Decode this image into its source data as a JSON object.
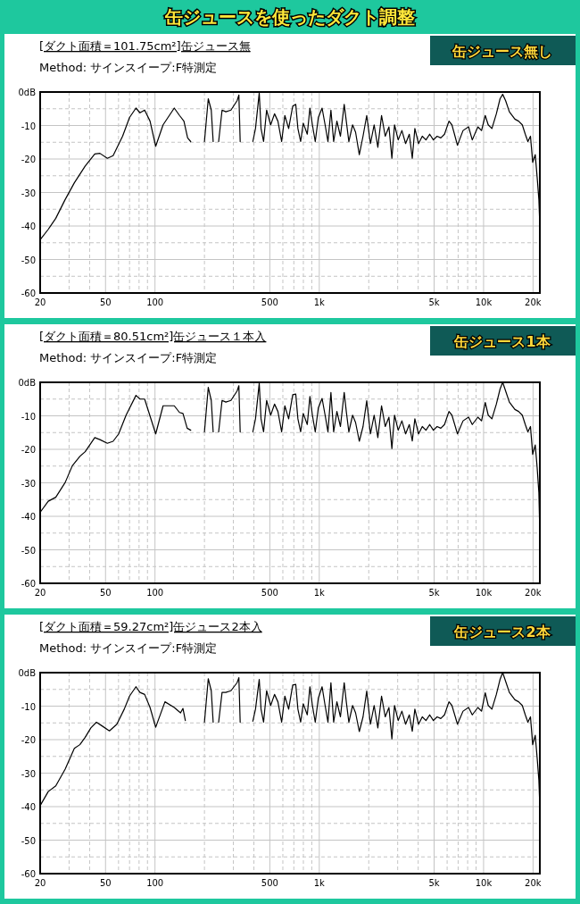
{
  "chart_data": [
    {
      "type": "line",
      "title": "[ダクト面積＝101.75cm²]缶ジュース無",
      "subtitle": "Method:  サインスイープ:F特測定",
      "annotations": [
        "缶ジュースを使ったダクト調整",
        "缶ジュース無し"
      ],
      "log": "x",
      "grid": true,
      "xlim": [
        20,
        22000
      ],
      "ylim": [
        -60,
        0
      ],
      "xticks": [
        20,
        {
          "value": 30,
          "label": null
        },
        {
          "value": 40,
          "label": null
        },
        50,
        {
          "value": 60,
          "label": null
        },
        {
          "value": 70,
          "label": null
        },
        {
          "value": 80,
          "label": null
        },
        {
          "value": 90,
          "label": null
        },
        100,
        {
          "value": 200,
          "label": null
        },
        {
          "value": 300,
          "label": null
        },
        {
          "value": 400,
          "label": null
        },
        500,
        {
          "value": 600,
          "label": null
        },
        {
          "value": 700,
          "label": null
        },
        {
          "value": 800,
          "label": null
        },
        {
          "value": 900,
          "label": null
        },
        {
          "value": 1000,
          "label": "1k"
        },
        {
          "value": 2000,
          "label": null
        },
        {
          "value": 3000,
          "label": null
        },
        {
          "value": 4000,
          "label": null
        },
        {
          "value": 5000,
          "label": "5k"
        },
        {
          "value": 6000,
          "label": null
        },
        {
          "value": 7000,
          "label": null
        },
        {
          "value": 8000,
          "label": null
        },
        {
          "value": 9000,
          "label": null
        },
        {
          "value": 10000,
          "label": "10k"
        },
        {
          "value": 20000,
          "label": "20k"
        }
      ],
      "yticks": [
        {
          "value": -60,
          "label": "-60"
        },
        {
          "value": -55,
          "label": null
        },
        {
          "value": -50,
          "label": "-50"
        },
        {
          "value": -45,
          "label": null
        },
        {
          "value": -40,
          "label": "-40"
        },
        {
          "value": -35,
          "label": null
        },
        {
          "value": -30,
          "label": "-30"
        },
        {
          "value": -25,
          "label": null
        },
        {
          "value": -20,
          "label": "-20"
        },
        {
          "value": -15,
          "label": null
        },
        {
          "value": -10,
          "label": "-10"
        },
        {
          "value": -5,
          "label": null
        },
        {
          "value": 0,
          "label": "0dB"
        }
      ],
      "series": [
        {
          "color": "#000000",
          "x": [
            20,
            22.4,
            24.9,
            28.4,
            32.3,
            37.6,
            43,
            46.2,
            51.3,
            55.6,
            63.5,
            70,
            76.6,
            81,
            86.5,
            93.3,
            101,
            112,
            131,
            141,
            150,
            158,
            165,
            180,
            200,
            211,
            220,
            226,
            235,
            244,
            256,
            270,
            290,
            316,
            324,
            330,
            360,
            394,
            409,
            431,
            442,
            458,
            478,
            506,
            534,
            560,
            590,
            617,
            651,
            689,
            719,
            741,
            770,
            799,
            845,
            877,
            908,
            945,
            987,
            1040,
            1085,
            1129,
            1177,
            1223,
            1280,
            1345,
            1418,
            1460,
            1513,
            1595,
            1663,
            1752,
            1846,
            1944,
            2048,
            2157,
            2272,
            2393,
            2520,
            2654,
            2766,
            2870,
            3022,
            3183,
            3353,
            3531,
            3681,
            3817,
            4020,
            4235,
            4460,
            4697,
            4948,
            5212,
            5490,
            5782,
            6155,
            6416,
            6934,
            7497,
            8102,
            8535,
            9228,
            9719,
            10236,
            10670,
            11238,
            11960,
            12600,
            13070,
            13620,
            14350,
            15510,
            16340,
            17200,
            17940,
            18600,
            19290,
            19900,
            20630,
            21180,
            21700,
            21950
          ],
          "values": [
            -44.1,
            -41.0,
            -37.7,
            -32.1,
            -27.1,
            -22.1,
            -18.5,
            -18.3,
            -19.8,
            -19.0,
            -13.2,
            -7.6,
            -4.8,
            -6.2,
            -5.4,
            -8.7,
            -16.2,
            -9.8,
            -4.8,
            -7.0,
            -8.7,
            -13.7,
            -14.8,
            null,
            -14.8,
            -2.0,
            -5.4,
            -14.8,
            null,
            -14.8,
            -5.4,
            -5.9,
            -5.4,
            -2.6,
            -0.9,
            -14.8,
            null,
            -14.8,
            -10.9,
            -0.3,
            -10.9,
            -14.8,
            -5.4,
            -9.8,
            -6.5,
            -8.7,
            -14.8,
            -7.0,
            -10.9,
            -4.2,
            -3.7,
            -10.9,
            -14.8,
            -9.3,
            -12.6,
            -4.8,
            -9.8,
            -14.8,
            -7.6,
            -4.8,
            -9.8,
            -14.8,
            -5.4,
            -14.8,
            -8.7,
            -13.2,
            -3.7,
            -8.7,
            -14.8,
            -9.8,
            -12.0,
            -18.7,
            -13.2,
            -7.0,
            -15.4,
            -9.8,
            -16.5,
            -7.0,
            -13.2,
            -10.4,
            -19.8,
            -9.8,
            -14.3,
            -11.5,
            -15.4,
            -12.6,
            -19.8,
            -10.9,
            -15.4,
            -13.2,
            -14.3,
            -12.6,
            -14.3,
            -13.2,
            -13.7,
            -12.6,
            -8.7,
            -9.8,
            -15.9,
            -11.5,
            -10.4,
            -14.3,
            -10.4,
            -11.5,
            -7.0,
            -9.8,
            -10.9,
            -6.5,
            -2.0,
            -0.7,
            -2.6,
            -5.9,
            -8.1,
            -8.7,
            -9.8,
            -12.6,
            -14.8,
            -13.2,
            -21.0,
            -18.7,
            -25.4,
            -32.1,
            -38.8
          ]
        }
      ]
    },
    {
      "type": "line",
      "title": "[ダクト面積＝80.51cm²]缶ジュース１本入",
      "subtitle": "Method:  サインスイープ:F特測定",
      "annotations": [
        "缶ジュース1本"
      ],
      "log": "x",
      "grid": true,
      "xlim": [
        20,
        22000
      ],
      "ylim": [
        -60,
        0
      ],
      "xticks": [
        20,
        {
          "value": 30,
          "label": null
        },
        {
          "value": 40,
          "label": null
        },
        50,
        {
          "value": 60,
          "label": null
        },
        {
          "value": 70,
          "label": null
        },
        {
          "value": 80,
          "label": null
        },
        {
          "value": 90,
          "label": null
        },
        100,
        {
          "value": 200,
          "label": null
        },
        {
          "value": 300,
          "label": null
        },
        {
          "value": 400,
          "label": null
        },
        500,
        {
          "value": 600,
          "label": null
        },
        {
          "value": 700,
          "label": null
        },
        {
          "value": 800,
          "label": null
        },
        {
          "value": 900,
          "label": null
        },
        {
          "value": 1000,
          "label": "1k"
        },
        {
          "value": 2000,
          "label": null
        },
        {
          "value": 3000,
          "label": null
        },
        {
          "value": 4000,
          "label": null
        },
        {
          "value": 5000,
          "label": "5k"
        },
        {
          "value": 6000,
          "label": null
        },
        {
          "value": 7000,
          "label": null
        },
        {
          "value": 8000,
          "label": null
        },
        {
          "value": 9000,
          "label": null
        },
        {
          "value": 10000,
          "label": "10k"
        },
        {
          "value": 20000,
          "label": "20k"
        }
      ],
      "yticks": [
        {
          "value": -60,
          "label": "-60"
        },
        {
          "value": -55,
          "label": null
        },
        {
          "value": -50,
          "label": "-50"
        },
        {
          "value": -45,
          "label": null
        },
        {
          "value": -40,
          "label": "-40"
        },
        {
          "value": -35,
          "label": null
        },
        {
          "value": -30,
          "label": "-30"
        },
        {
          "value": -25,
          "label": null
        },
        {
          "value": -20,
          "label": "-20"
        },
        {
          "value": -15,
          "label": null
        },
        {
          "value": -10,
          "label": "-10"
        },
        {
          "value": -5,
          "label": null
        },
        {
          "value": 0,
          "label": "0dB"
        }
      ],
      "series": [
        {
          "color": "#000000",
          "x": [
            20,
            22.4,
            24.9,
            28.4,
            31.4,
            34.9,
            37.6,
            43,
            46.2,
            51.3,
            55.6,
            60.1,
            66.7,
            76.6,
            81,
            86.5,
            101,
            112,
            131,
            141,
            148,
            157,
            165,
            180,
            200,
            211,
            220,
            226,
            235,
            244,
            256,
            270,
            290,
            316,
            324,
            330,
            360,
            394,
            409,
            431,
            442,
            458,
            478,
            506,
            534,
            560,
            590,
            617,
            651,
            689,
            719,
            741,
            770,
            799,
            845,
            877,
            908,
            945,
            987,
            1040,
            1085,
            1129,
            1177,
            1223,
            1280,
            1345,
            1418,
            1460,
            1513,
            1595,
            1663,
            1752,
            1846,
            1944,
            2048,
            2157,
            2272,
            2393,
            2520,
            2654,
            2766,
            2870,
            3022,
            3183,
            3353,
            3531,
            3681,
            3817,
            4020,
            4235,
            4460,
            4697,
            4948,
            5212,
            5490,
            5782,
            6155,
            6416,
            6934,
            7497,
            8102,
            8535,
            9228,
            9719,
            10236,
            10670,
            11238,
            11960,
            12600,
            13070,
            13620,
            14350,
            15510,
            16340,
            17200,
            17940,
            18600,
            19290,
            19900,
            20630,
            21180,
            21700,
            21950
          ],
          "values": [
            -38.8,
            -35.5,
            -34.3,
            -29.9,
            -24.9,
            -22.1,
            -20.7,
            -16.5,
            -17.1,
            -18.2,
            -17.6,
            -15.4,
            -9.8,
            -3.9,
            -5.0,
            -5.0,
            -15.4,
            -7.0,
            -7.0,
            -9.0,
            -9.3,
            -13.7,
            -14.3,
            null,
            -14.8,
            -1.5,
            -5.4,
            -14.8,
            null,
            -14.8,
            -5.4,
            -5.9,
            -5.4,
            -2.6,
            -1.0,
            -14.8,
            null,
            -14.8,
            -10.9,
            -0.3,
            -10.9,
            -14.8,
            -5.4,
            -9.8,
            -6.5,
            -8.7,
            -14.8,
            -7.0,
            -10.9,
            -3.7,
            -3.5,
            -10.9,
            -14.8,
            -9.3,
            -12.6,
            -4.2,
            -9.8,
            -14.8,
            -7.6,
            -4.8,
            -9.8,
            -14.8,
            -3.0,
            -14.8,
            -8.7,
            -13.2,
            -3.0,
            -8.7,
            -14.8,
            -9.8,
            -12.0,
            -17.6,
            -13.2,
            -5.5,
            -15.4,
            -9.8,
            -16.5,
            -7.0,
            -13.2,
            -10.4,
            -19.8,
            -9.8,
            -14.3,
            -11.5,
            -15.4,
            -12.6,
            -17.5,
            -10.9,
            -15.4,
            -13.2,
            -14.3,
            -12.6,
            -14.3,
            -13.2,
            -13.7,
            -12.6,
            -8.7,
            -9.8,
            -15.4,
            -11.5,
            -10.4,
            -12.6,
            -10.4,
            -11.5,
            -6.0,
            -9.8,
            -10.9,
            -6.5,
            -2.0,
            0.0,
            -2.6,
            -5.9,
            -8.1,
            -8.7,
            -9.8,
            -12.6,
            -14.8,
            -13.2,
            -21.5,
            -18.7,
            -25.4,
            -33.0,
            -43.3
          ]
        }
      ]
    },
    {
      "type": "line",
      "title": "[ダクト面積＝59.27cm²]缶ジュース2本入",
      "subtitle": "Method:  サインスイープ:F特測定",
      "annotations": [
        "缶ジュース2本"
      ],
      "log": "x",
      "grid": true,
      "xlim": [
        20,
        22000
      ],
      "ylim": [
        -60,
        0
      ],
      "xticks": [
        20,
        {
          "value": 30,
          "label": null
        },
        {
          "value": 40,
          "label": null
        },
        50,
        {
          "value": 60,
          "label": null
        },
        {
          "value": 70,
          "label": null
        },
        {
          "value": 80,
          "label": null
        },
        {
          "value": 90,
          "label": null
        },
        100,
        {
          "value": 200,
          "label": null
        },
        {
          "value": 300,
          "label": null
        },
        {
          "value": 400,
          "label": null
        },
        500,
        {
          "value": 600,
          "label": null
        },
        {
          "value": 700,
          "label": null
        },
        {
          "value": 800,
          "label": null
        },
        {
          "value": 900,
          "label": null
        },
        {
          "value": 1000,
          "label": "1k"
        },
        {
          "value": 2000,
          "label": null
        },
        {
          "value": 3000,
          "label": null
        },
        {
          "value": 4000,
          "label": null
        },
        {
          "value": 5000,
          "label": "5k"
        },
        {
          "value": 6000,
          "label": null
        },
        {
          "value": 7000,
          "label": null
        },
        {
          "value": 8000,
          "label": null
        },
        {
          "value": 9000,
          "label": null
        },
        {
          "value": 10000,
          "label": "10k"
        },
        {
          "value": 20000,
          "label": "20k"
        }
      ],
      "yticks": [
        {
          "value": -60,
          "label": "-60"
        },
        {
          "value": -55,
          "label": null
        },
        {
          "value": -50,
          "label": "-50"
        },
        {
          "value": -45,
          "label": null
        },
        {
          "value": -40,
          "label": "-40"
        },
        {
          "value": -35,
          "label": null
        },
        {
          "value": -30,
          "label": "-30"
        },
        {
          "value": -25,
          "label": null
        },
        {
          "value": -20,
          "label": "-20"
        },
        {
          "value": -15,
          "label": null
        },
        {
          "value": -10,
          "label": "-10"
        },
        {
          "value": -5,
          "label": null
        },
        {
          "value": 0,
          "label": "0dB"
        }
      ],
      "series": [
        {
          "color": "#000000",
          "x": [
            20,
            22.4,
            24.9,
            28.4,
            32.3,
            34.9,
            37.6,
            40.7,
            44,
            47.6,
            52.8,
            58.6,
            65,
            70,
            76.6,
            81,
            86.5,
            93.3,
            101,
            115,
            131,
            143,
            148,
            153,
            180,
            200,
            211,
            220,
            226,
            235,
            244,
            256,
            270,
            290,
            316,
            324,
            330,
            360,
            394,
            409,
            431,
            442,
            458,
            478,
            506,
            534,
            560,
            590,
            617,
            651,
            689,
            719,
            741,
            770,
            799,
            845,
            877,
            908,
            945,
            987,
            1040,
            1085,
            1129,
            1177,
            1223,
            1280,
            1345,
            1418,
            1460,
            1513,
            1595,
            1663,
            1752,
            1846,
            1944,
            2048,
            2157,
            2272,
            2393,
            2520,
            2654,
            2766,
            2870,
            3022,
            3183,
            3353,
            3531,
            3681,
            3817,
            4020,
            4235,
            4460,
            4697,
            4948,
            5212,
            5490,
            5782,
            6155,
            6416,
            6934,
            7497,
            8102,
            8535,
            9228,
            9719,
            10236,
            10670,
            11238,
            11960,
            12600,
            13070,
            13620,
            14350,
            15510,
            16340,
            17200,
            17940,
            18600,
            19290,
            19900,
            20630,
            21180,
            21700,
            21950
          ],
          "values": [
            -39.7,
            -35.5,
            -33.8,
            -28.8,
            -22.6,
            -21.5,
            -19.3,
            -16.5,
            -14.8,
            -15.9,
            -17.4,
            -15.4,
            -10.9,
            -7.0,
            -4.2,
            -5.9,
            -6.5,
            -10.4,
            -16.3,
            -8.7,
            -10.4,
            -12.0,
            -10.7,
            -14.3,
            null,
            -14.8,
            -1.8,
            -5.4,
            -14.8,
            null,
            -14.8,
            -5.9,
            -5.9,
            -5.4,
            -3.0,
            -1.5,
            -14.8,
            null,
            -14.5,
            -10.9,
            -2.0,
            -10.9,
            -14.8,
            -5.4,
            -9.8,
            -6.5,
            -8.7,
            -14.8,
            -7.0,
            -10.9,
            -3.7,
            -3.5,
            -10.9,
            -14.8,
            -9.3,
            -12.6,
            -4.2,
            -9.8,
            -14.8,
            -7.6,
            -4.2,
            -9.8,
            -14.8,
            -3.0,
            -14.8,
            -8.7,
            -13.2,
            -3.0,
            -8.7,
            -14.8,
            -9.8,
            -12.0,
            -17.6,
            -13.2,
            -5.5,
            -15.4,
            -9.8,
            -16.5,
            -7.0,
            -13.2,
            -10.4,
            -19.8,
            -9.8,
            -14.3,
            -11.5,
            -15.4,
            -12.6,
            -17.5,
            -10.9,
            -15.4,
            -13.2,
            -14.3,
            -12.6,
            -14.3,
            -13.2,
            -13.7,
            -12.6,
            -8.7,
            -9.8,
            -15.4,
            -11.5,
            -10.4,
            -12.6,
            -10.4,
            -11.5,
            -6.0,
            -9.8,
            -10.9,
            -6.5,
            -2.0,
            0.0,
            -2.6,
            -5.9,
            -8.1,
            -8.7,
            -9.8,
            -12.6,
            -14.8,
            -13.2,
            -21.5,
            -18.7,
            -25.4,
            -32.1,
            -38.8
          ]
        }
      ]
    }
  ]
}
